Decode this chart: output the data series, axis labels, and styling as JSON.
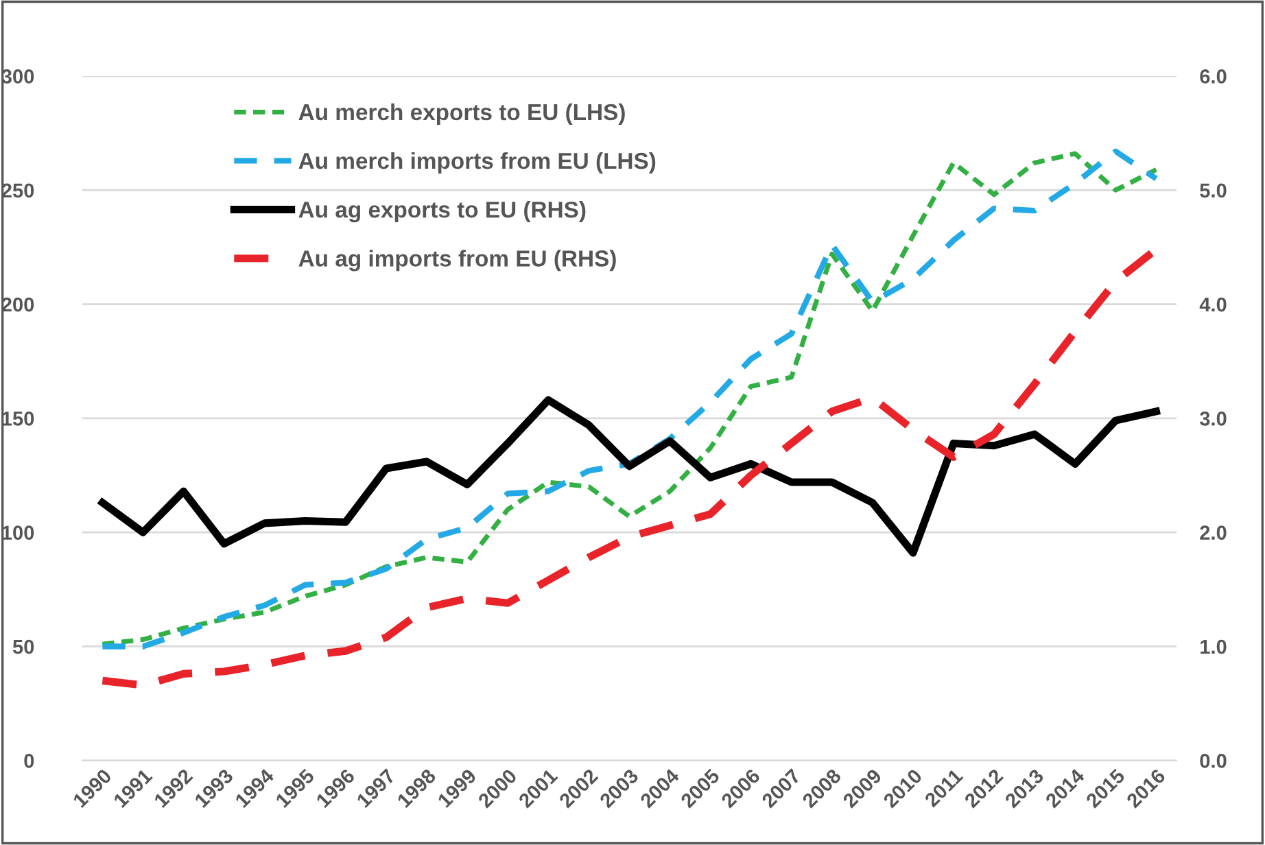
{
  "chart_data": {
    "type": "line",
    "categories": [
      "1990",
      "1991",
      "1992",
      "1993",
      "1994",
      "1995",
      "1996",
      "1997",
      "1998",
      "1999",
      "2000",
      "2001",
      "2002",
      "2003",
      "2004",
      "2005",
      "2006",
      "2007",
      "2008",
      "2009",
      "2010",
      "2011",
      "2012",
      "2013",
      "2014",
      "2015",
      "2016"
    ],
    "series": [
      {
        "name": "Au merch exports to EU (LHS)",
        "color": "#33b043",
        "line_style": "dotted",
        "values": [
          51,
          53,
          58,
          62,
          65,
          72,
          77,
          85,
          89,
          87,
          110,
          122,
          120,
          107,
          118,
          137,
          164,
          168,
          222,
          197,
          230,
          262,
          248,
          262,
          266,
          250,
          259
        ]
      },
      {
        "name": "Au merch imports from EU (LHS)",
        "color": "#23aae6",
        "line_style": "dashed",
        "values": [
          50,
          50,
          56,
          63,
          68,
          77,
          78,
          84,
          97,
          102,
          117,
          118,
          127,
          130,
          141,
          157,
          176,
          187,
          226,
          201,
          211,
          228,
          242,
          241,
          253,
          267,
          255
        ]
      },
      {
        "name": "Au ag exports to EU (RHS)",
        "color": "#000000",
        "line_style": "solid",
        "axis": "y2",
        "values": [
          2.26,
          2.0,
          2.36,
          1.9,
          2.08,
          2.1,
          2.09,
          2.56,
          2.62,
          2.42,
          2.78,
          3.16,
          2.94,
          2.58,
          2.8,
          2.48,
          2.6,
          2.44,
          2.44,
          2.26,
          1.82,
          2.78,
          2.76,
          2.86,
          2.6,
          2.98,
          3.06
        ]
      },
      {
        "name": "Au ag imports from EU (RHS)",
        "color": "#e8232a",
        "line_style": "longdash",
        "axis": "y2",
        "values": [
          0.7,
          0.66,
          0.76,
          0.78,
          0.84,
          0.92,
          0.96,
          1.08,
          1.34,
          1.42,
          1.38,
          1.58,
          1.78,
          1.96,
          2.06,
          2.16,
          2.5,
          2.78,
          3.06,
          3.18,
          2.9,
          2.66,
          2.86,
          3.3,
          3.76,
          4.2,
          4.48
        ]
      }
    ],
    "ylim": [
      0,
      300
    ],
    "yticks": [
      0,
      50,
      100,
      150,
      200,
      250,
      300
    ],
    "y2lim": [
      0,
      6
    ],
    "y2ticks": [
      {
        "value": 0,
        "label": "0.0"
      },
      {
        "value": 1,
        "label": "1.0"
      },
      {
        "value": 2,
        "label": "2.0"
      },
      {
        "value": 3,
        "label": "3.0"
      },
      {
        "value": 4,
        "label": "4.0"
      },
      {
        "value": 5,
        "label": "5.0"
      },
      {
        "value": 6,
        "label": "6.0"
      }
    ],
    "grid": "y",
    "legend": "top left"
  }
}
